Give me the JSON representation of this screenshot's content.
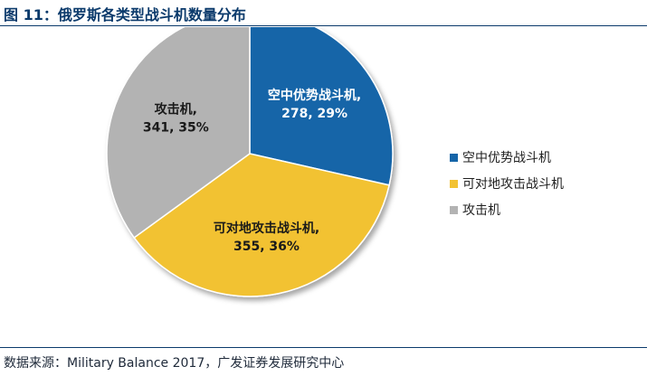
{
  "figure_title": "图 11：俄罗斯各类型战斗机数量分布",
  "source_note": "数据来源：Military Balance 2017，广发证券发展研究中心",
  "chart_data": {
    "type": "pie",
    "title": "",
    "legend_position": "right",
    "slices": [
      {
        "name": "空中优势战斗机",
        "value": 278,
        "percent": "29%",
        "color": "#1565a8",
        "label_color": "#ffffff"
      },
      {
        "name": "可对地攻击战斗机",
        "value": 355,
        "percent": "36%",
        "color": "#f2c233",
        "label_color": "#1a1a1a"
      },
      {
        "name": "攻击机",
        "value": 341,
        "percent": "35%",
        "color": "#b3b3b3",
        "label_color": "#1a1a1a"
      }
    ]
  }
}
